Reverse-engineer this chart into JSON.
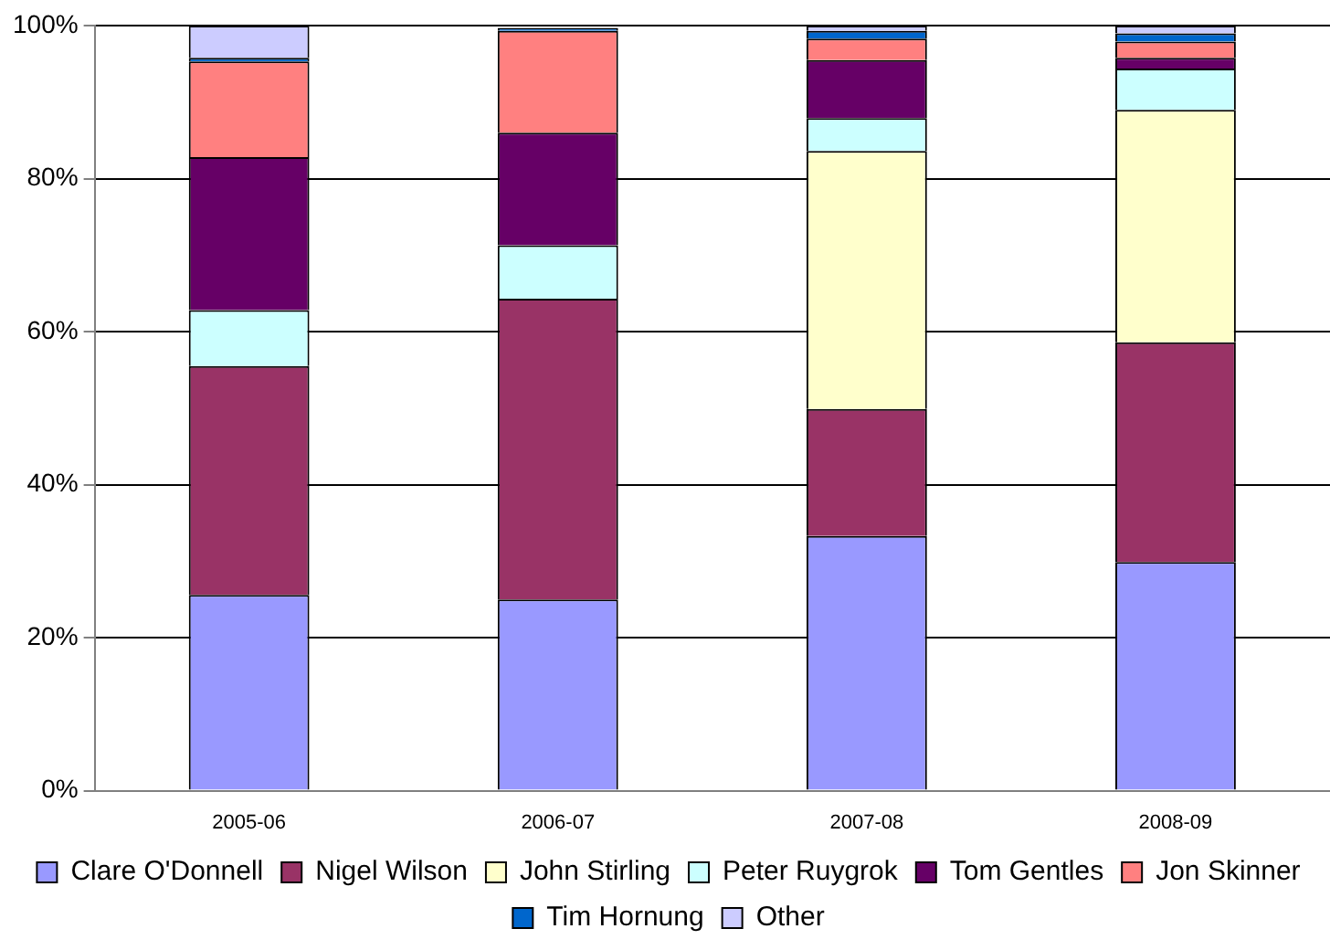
{
  "chart_data": {
    "type": "bar",
    "stacked": true,
    "categories": [
      "2005-06",
      "2006-07",
      "2007-08",
      "2008-09"
    ],
    "series": [
      {
        "name": "Clare O'Donnell",
        "color": "#9999ff",
        "values": [
          25.6,
          25.0,
          33.3,
          29.9
        ]
      },
      {
        "name": "Nigel Wilson",
        "color": "#993366",
        "values": [
          29.9,
          39.3,
          16.6,
          28.7
        ]
      },
      {
        "name": "John Stirling",
        "color": "#ffffcc",
        "values": [
          0,
          0,
          33.7,
          30.4
        ]
      },
      {
        "name": "Peter Ruygrok",
        "color": "#ccffff",
        "values": [
          7.3,
          7.0,
          4.3,
          5.4
        ]
      },
      {
        "name": "Tom Gentles",
        "color": "#660066",
        "values": [
          20.0,
          14.7,
          7.6,
          1.4
        ]
      },
      {
        "name": "Jon Skinner",
        "color": "#ff8080",
        "values": [
          12.5,
          13.3,
          2.8,
          2.1
        ]
      },
      {
        "name": "Tim Hornung",
        "color": "#0066cc",
        "values": [
          0.5,
          0.4,
          1.0,
          1.1
        ]
      },
      {
        "name": "Other",
        "color": "#ccccff",
        "values": [
          4.2,
          null,
          0.7,
          1.0
        ]
      }
    ],
    "ylim": [
      0,
      100
    ],
    "yticks": [
      {
        "value": 0,
        "label": "0%"
      },
      {
        "value": 20,
        "label": "20%"
      },
      {
        "value": 40,
        "label": "40%"
      },
      {
        "value": 60,
        "label": "60%"
      },
      {
        "value": 80,
        "label": "80%"
      },
      {
        "value": 100,
        "label": "100%"
      }
    ],
    "grid": "y",
    "legend": "bottom"
  }
}
